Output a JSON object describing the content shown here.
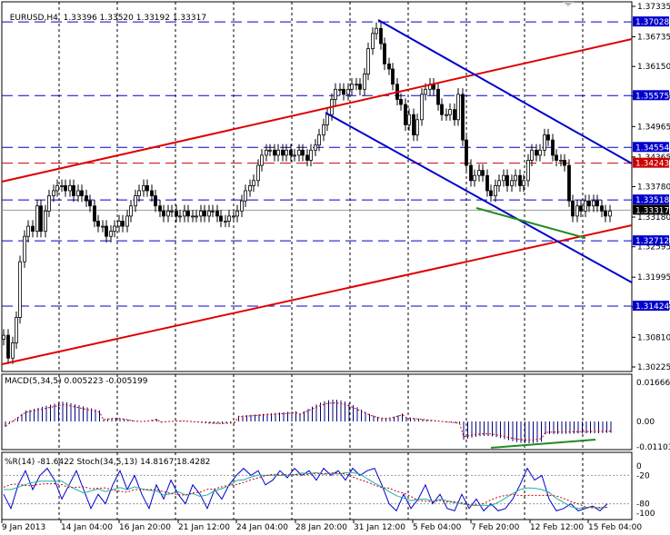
{
  "header": {
    "symbol_tf": "EURUSD,H4",
    "ohlc": "1.33396 1.33520 1.33192 1.33317"
  },
  "macd_label": "MACD(5,34,5) 0.005223 -0.005199",
  "stoch_label": "%R(14) -81.6422 Stoch(34,5,13) 14.8167 18.4282",
  "price_axis": {
    "ticks": [
      "1.37335",
      "1.36735",
      "1.36150",
      "1.35565",
      "1.34965",
      "1.34365",
      "1.33780",
      "1.33180",
      "1.32595",
      "1.31995",
      "1.31410",
      "1.30810",
      "1.30225"
    ],
    "hlines": [
      {
        "label": "1.37028",
        "color": "#0000cc"
      },
      {
        "label": "1.35575",
        "color": "#0000cc"
      },
      {
        "label": "1.34554",
        "color": "#0000cc"
      },
      {
        "label": "1.34243",
        "color": "#cc0000"
      },
      {
        "label": "1.33518",
        "color": "#0000cc"
      },
      {
        "label": "1.33317",
        "color": "#000000"
      },
      {
        "label": "1.32712",
        "color": "#0000cc"
      },
      {
        "label": "1.31424",
        "color": "#0000cc"
      }
    ]
  },
  "macd_axis": {
    "ticks": [
      "0.016662",
      "0.00",
      "-0.011031"
    ]
  },
  "stoch_axis": {
    "ticks": [
      "0",
      "-20",
      "-80",
      "-100"
    ]
  },
  "time_axis": [
    "9 Jan 2013",
    "14 Jan 04:00",
    "16 Jan 20:00",
    "21 Jan 12:00",
    "24 Jan 04:00",
    "28 Jan 20:00",
    "31 Jan 12:00",
    "5 Feb 04:00",
    "7 Feb 20:00",
    "12 Feb 12:00",
    "15 Feb 04:00"
  ],
  "colors": {
    "up_trend": "#e00000",
    "down_trend": "#0000cc",
    "divergence": "#228b22",
    "hline_blue": "#0000cc",
    "hline_red": "#cc0000"
  }
}
